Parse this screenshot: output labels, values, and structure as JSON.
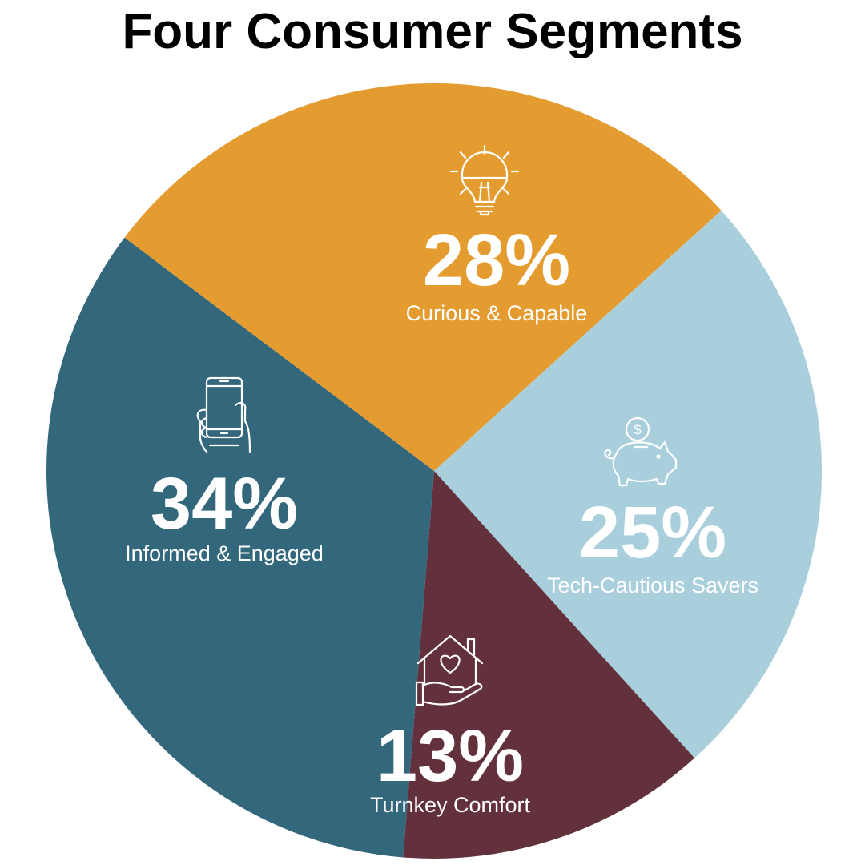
{
  "chart_data": {
    "type": "pie",
    "title": "Four Consumer Segments",
    "start_angle_deg": -143,
    "direction": "clockwise",
    "slices": [
      {
        "label": "Curious & Capable",
        "value": 28,
        "display": "28%",
        "color": "#E49C30",
        "icon": "lightbulb-icon"
      },
      {
        "label": "Tech-Cautious Savers",
        "value": 25,
        "display": "25%",
        "color": "#A9CFDC",
        "icon": "piggy-bank-icon"
      },
      {
        "label": "Turnkey Comfort",
        "value": 13,
        "display": "13%",
        "color": "#63313B",
        "icon": "house-heart-hand-icon"
      },
      {
        "label": "Informed & Engaged",
        "value": 34,
        "display": "34%",
        "color": "#32677C",
        "icon": "phone-in-hand-icon"
      }
    ]
  }
}
